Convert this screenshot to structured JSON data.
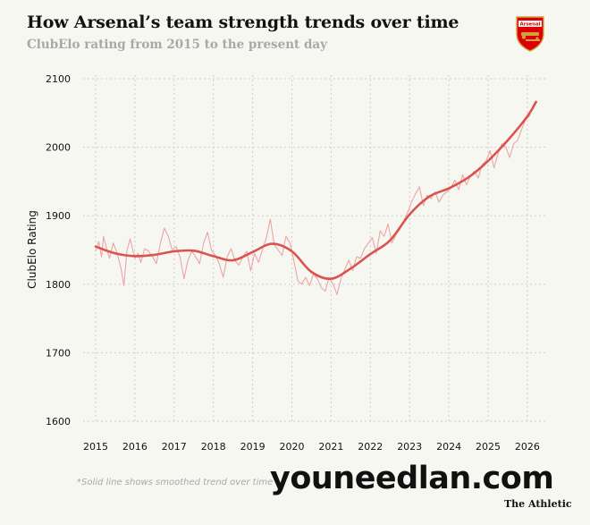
{
  "header": {
    "title": "How Arsenal’s team strength trends over time",
    "subtitle": "ClubElo rating from 2015 to the present day",
    "crest_text": "Arsenal"
  },
  "footer": {
    "note": "*Solid line shows smoothed trend over time",
    "watermark": "youneedlan.com",
    "brand": "The Athletic"
  },
  "colors": {
    "trend": "#d9534f",
    "raw": "#eba5a3",
    "grid": "#cfcfc8",
    "text": "#121212",
    "muted": "#a8a8a8",
    "crest_red": "#db0007",
    "crest_gold": "#d4a23a"
  },
  "chart_data": {
    "type": "line",
    "title": "How Arsenal’s team strength trends over time",
    "subtitle": "ClubElo rating from 2015 to the present day",
    "xlabel": "",
    "ylabel": "ClubElo Rating",
    "xlim": [
      2014.95,
      2026.25
    ],
    "ylim": [
      1600,
      2100
    ],
    "x_ticks": [
      2015,
      2016,
      2017,
      2018,
      2019,
      2020,
      2021,
      2022,
      2023,
      2024,
      2025,
      2026
    ],
    "x_tick_labels": [
      "2015",
      "2016",
      "2017",
      "2018",
      "2019",
      "2020",
      "2021",
      "2022",
      "2023",
      "2024",
      "2025",
      "2026"
    ],
    "y_ticks": [
      1600,
      1700,
      1800,
      1900,
      2000,
      2100
    ],
    "y_tick_labels": [
      "1600",
      "1700",
      "1800",
      "1900",
      "2000",
      "2100"
    ],
    "grid": true,
    "legend": "none",
    "series": [
      {
        "role": "raw",
        "x": [
          2015.0,
          2015.08,
          2015.15,
          2015.2,
          2015.28,
          2015.35,
          2015.45,
          2015.55,
          2015.65,
          2015.72,
          2015.8,
          2015.88,
          2016.0,
          2016.08,
          2016.15,
          2016.25,
          2016.35,
          2016.45,
          2016.55,
          2016.65,
          2016.75,
          2016.85,
          2016.95,
          2017.05,
          2017.15,
          2017.25,
          2017.35,
          2017.45,
          2017.55,
          2017.65,
          2017.75,
          2017.85,
          2017.95,
          2018.05,
          2018.15,
          2018.25,
          2018.35,
          2018.45,
          2018.55,
          2018.65,
          2018.75,
          2018.85,
          2018.95,
          2019.05,
          2019.15,
          2019.25,
          2019.35,
          2019.45,
          2019.55,
          2019.65,
          2019.75,
          2019.85,
          2019.95,
          2020.05,
          2020.15,
          2020.25,
          2020.35,
          2020.45,
          2020.55,
          2020.65,
          2020.75,
          2020.85,
          2020.95,
          2021.05,
          2021.15,
          2021.25,
          2021.35,
          2021.45,
          2021.55,
          2021.65,
          2021.75,
          2021.85,
          2021.95,
          2022.05,
          2022.15,
          2022.25,
          2022.35,
          2022.45,
          2022.55,
          2022.65,
          2022.75,
          2022.85,
          2022.95,
          2023.05,
          2023.15,
          2023.25,
          2023.35,
          2023.45,
          2023.55,
          2023.65,
          2023.75,
          2023.85,
          2023.95,
          2024.05,
          2024.15,
          2024.25,
          2024.35,
          2024.45,
          2024.55,
          2024.65,
          2024.75,
          2024.85,
          2024.95,
          2025.05,
          2025.15,
          2025.25,
          2025.35,
          2025.45,
          2025.55,
          2025.65,
          2025.75,
          2025.85,
          2025.95,
          2026.05,
          2026.15,
          2026.22
        ],
        "values": [
          1848,
          1862,
          1840,
          1870,
          1852,
          1838,
          1860,
          1845,
          1822,
          1798,
          1850,
          1866,
          1838,
          1845,
          1832,
          1852,
          1848,
          1840,
          1830,
          1860,
          1882,
          1870,
          1850,
          1855,
          1840,
          1808,
          1835,
          1848,
          1840,
          1830,
          1860,
          1876,
          1850,
          1842,
          1830,
          1810,
          1840,
          1852,
          1835,
          1828,
          1840,
          1848,
          1820,
          1845,
          1832,
          1850,
          1868,
          1895,
          1858,
          1850,
          1842,
          1870,
          1860,
          1835,
          1805,
          1800,
          1810,
          1798,
          1815,
          1808,
          1795,
          1790,
          1810,
          1800,
          1785,
          1808,
          1822,
          1835,
          1820,
          1840,
          1838,
          1852,
          1860,
          1868,
          1845,
          1878,
          1870,
          1888,
          1860,
          1872,
          1880,
          1892,
          1905,
          1920,
          1932,
          1942,
          1915,
          1930,
          1925,
          1935,
          1920,
          1930,
          1935,
          1940,
          1952,
          1938,
          1960,
          1945,
          1958,
          1965,
          1955,
          1975,
          1980,
          1995,
          1970,
          1990,
          2005,
          2000,
          1985,
          2005,
          2010,
          2025,
          2040,
          2045,
          2060,
          2068
        ]
      },
      {
        "role": "trend",
        "x": [
          2015.0,
          2015.5,
          2016.0,
          2016.5,
          2017.0,
          2017.5,
          2018.0,
          2018.5,
          2019.0,
          2019.5,
          2020.0,
          2020.5,
          2021.0,
          2021.5,
          2022.0,
          2022.5,
          2023.0,
          2023.5,
          2024.0,
          2024.5,
          2025.0,
          2025.5,
          2026.0,
          2026.22
        ],
        "values": [
          1855,
          1845,
          1841,
          1843,
          1848,
          1849,
          1841,
          1835,
          1847,
          1859,
          1848,
          1818,
          1808,
          1823,
          1844,
          1864,
          1902,
          1928,
          1940,
          1956,
          1980,
          2010,
          2045,
          2066
        ]
      }
    ]
  }
}
